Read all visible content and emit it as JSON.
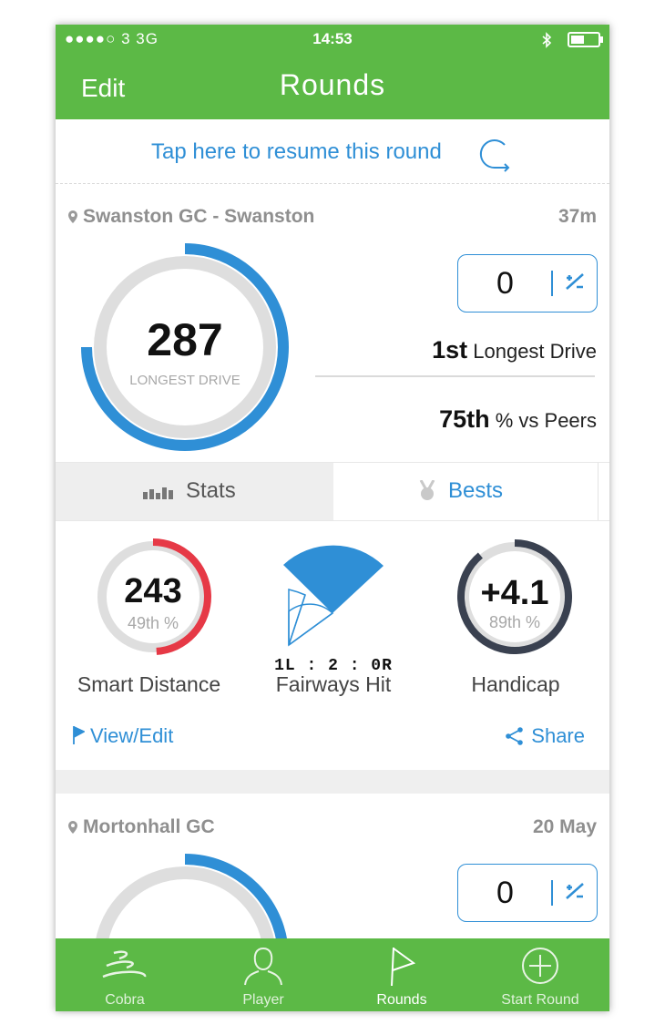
{
  "status_bar": {
    "carrier": "●●●●○ 3   3G",
    "time": "14:53"
  },
  "nav": {
    "edit_label": "Edit",
    "title": "Rounds"
  },
  "resume": {
    "text": "Tap here to resume this round"
  },
  "rounds": [
    {
      "course": "Swanston GC - Swanston",
      "when": "37m",
      "longest_drive": "287",
      "longest_drive_label": "LONGEST DRIVE",
      "score": "0",
      "score_toggle": "+/−",
      "rank_position": "1st",
      "rank_label": "Longest Drive",
      "percentile_value": "75th",
      "percentile_label": "% vs Peers"
    },
    {
      "course": "Mortonhall GC",
      "when": "20 May",
      "score": "0",
      "score_toggle": "+/−"
    }
  ],
  "tabs": {
    "stats": "Stats",
    "bests": "Bests"
  },
  "metrics": {
    "smart_distance": {
      "value": "243",
      "percentile": "49th %",
      "label": "Smart Distance",
      "fill": 0.49
    },
    "fairways": {
      "ratio": "1L : 2 : 0R",
      "label": "Fairways Hit"
    },
    "handicap": {
      "value": "+4.1",
      "percentile": "89th %",
      "label": "Handicap",
      "fill": 0.89
    }
  },
  "actions": {
    "view_edit": "View/Edit",
    "share": "Share"
  },
  "tabbar": [
    {
      "label": "Cobra",
      "icon": "cobra-logo-icon"
    },
    {
      "label": "Player",
      "icon": "player-icon"
    },
    {
      "label": "Rounds",
      "icon": "flag-icon",
      "active": true
    },
    {
      "label": "Start Round",
      "icon": "plus-circle-icon"
    }
  ],
  "colors": {
    "brand_green": "#5cb946",
    "accent_blue": "#2f8fd6",
    "red": "#e63946",
    "dark": "#3a4150",
    "ring_grey": "#dedede"
  }
}
